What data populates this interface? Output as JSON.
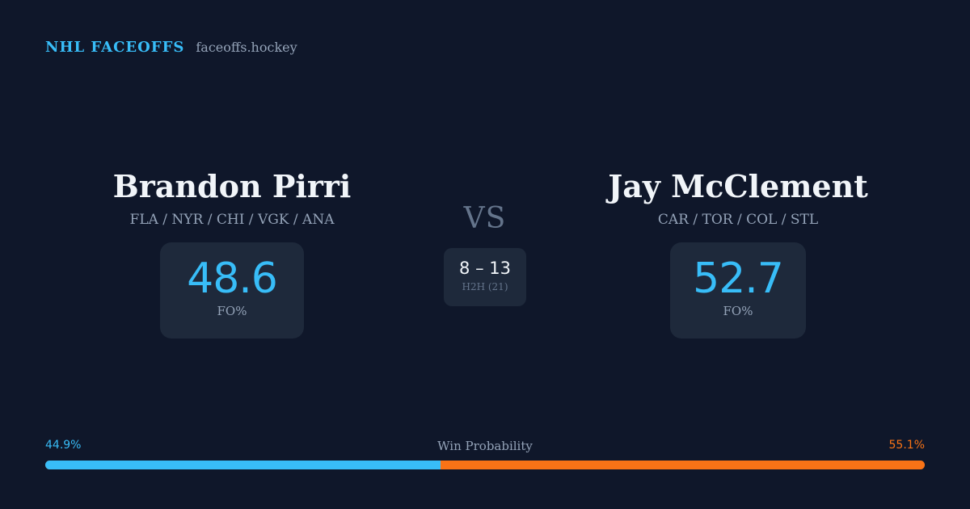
{
  "brand": {
    "name": "NHL FACEOFFS",
    "url": "faceoffs.hockey"
  },
  "player_left": {
    "name": "Brandon Pirri",
    "teams": "FLA / NYR / CHI / VGK / ANA",
    "fo_pct": "48.6",
    "fo_label": "FO%"
  },
  "player_right": {
    "name": "Jay McClement",
    "teams": "CAR / TOR / COL / STL",
    "fo_pct": "52.7",
    "fo_label": "FO%"
  },
  "vs_label": "VS",
  "h2h": {
    "score": "8 – 13",
    "label": "H2H (21)"
  },
  "win_probability": {
    "title": "Win Probability",
    "left_label": "44.9%",
    "right_label": "55.1%",
    "left_value": 44.9,
    "right_value": 55.1
  },
  "colors": {
    "background": "#0f172a",
    "card": "#1e293b",
    "accent_left": "#38bdf8",
    "accent_right": "#f97316"
  }
}
